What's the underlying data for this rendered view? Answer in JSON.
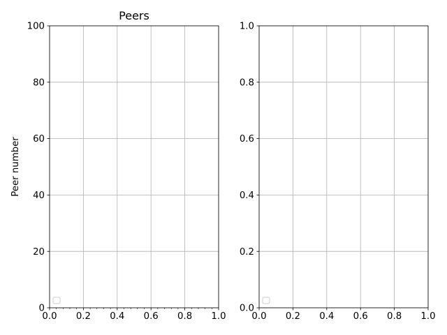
{
  "chart_data": [
    {
      "type": "line",
      "title": "Peers",
      "xlabel": "",
      "ylabel": "Peer number",
      "xlim": [
        0,
        1
      ],
      "ylim": [
        0,
        100
      ],
      "xticks": [
        "0.0",
        "0.2",
        "0.4",
        "0.6",
        "0.8",
        "1.0"
      ],
      "yticks": [
        "0",
        "20",
        "40",
        "60",
        "80",
        "100"
      ],
      "grid": true,
      "legend": "lower-left",
      "series": []
    },
    {
      "type": "line",
      "title": "",
      "xlabel": "",
      "ylabel": "",
      "xlim": [
        0,
        1
      ],
      "ylim": [
        0,
        1
      ],
      "xticks": [
        "0.0",
        "0.2",
        "0.4",
        "0.6",
        "0.8",
        "1.0"
      ],
      "yticks": [
        "0.0",
        "0.2",
        "0.4",
        "0.6",
        "0.8",
        "1.0"
      ],
      "grid": true,
      "legend": "lower-left",
      "series": []
    }
  ],
  "colors": {
    "grid": "#b0b0b0",
    "axis": "#000000",
    "legend_border": "#cccccc"
  }
}
